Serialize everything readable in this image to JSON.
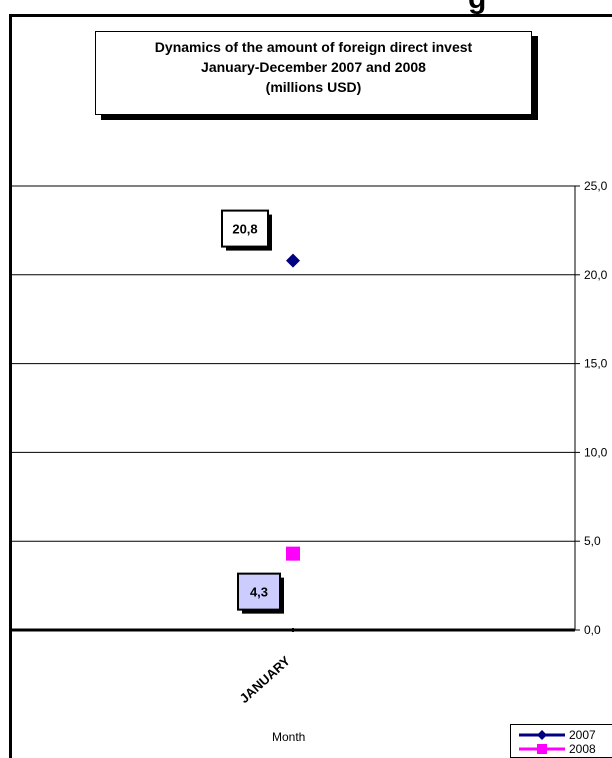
{
  "header_cut_text": "g",
  "chart_data": {
    "type": "scatter",
    "title_lines": [
      "Dynamics of the amount of foreign direct invest",
      "January-December 2007 and  2008",
      "(millions USD)"
    ],
    "categories": [
      "JANUARY"
    ],
    "xlabel": "Month",
    "ylabel": "",
    "ylim": [
      0,
      25
    ],
    "y_ticks": [
      "0,0",
      "5,0",
      "10,0",
      "15,0",
      "20,0",
      "25,0"
    ],
    "y_tick_values": [
      0,
      5,
      10,
      15,
      20,
      25
    ],
    "grid": true,
    "legend_placement": "bottom-right",
    "series": [
      {
        "name": "2007",
        "values": [
          20.8
        ],
        "labels": [
          "20,8"
        ],
        "color": "#000080",
        "marker": "diamond",
        "label_bg": "#ffffff"
      },
      {
        "name": "2008",
        "values": [
          4.3
        ],
        "labels": [
          "4,3"
        ],
        "color": "#ff00ff",
        "marker": "square",
        "label_bg": "#ccccff"
      }
    ]
  }
}
